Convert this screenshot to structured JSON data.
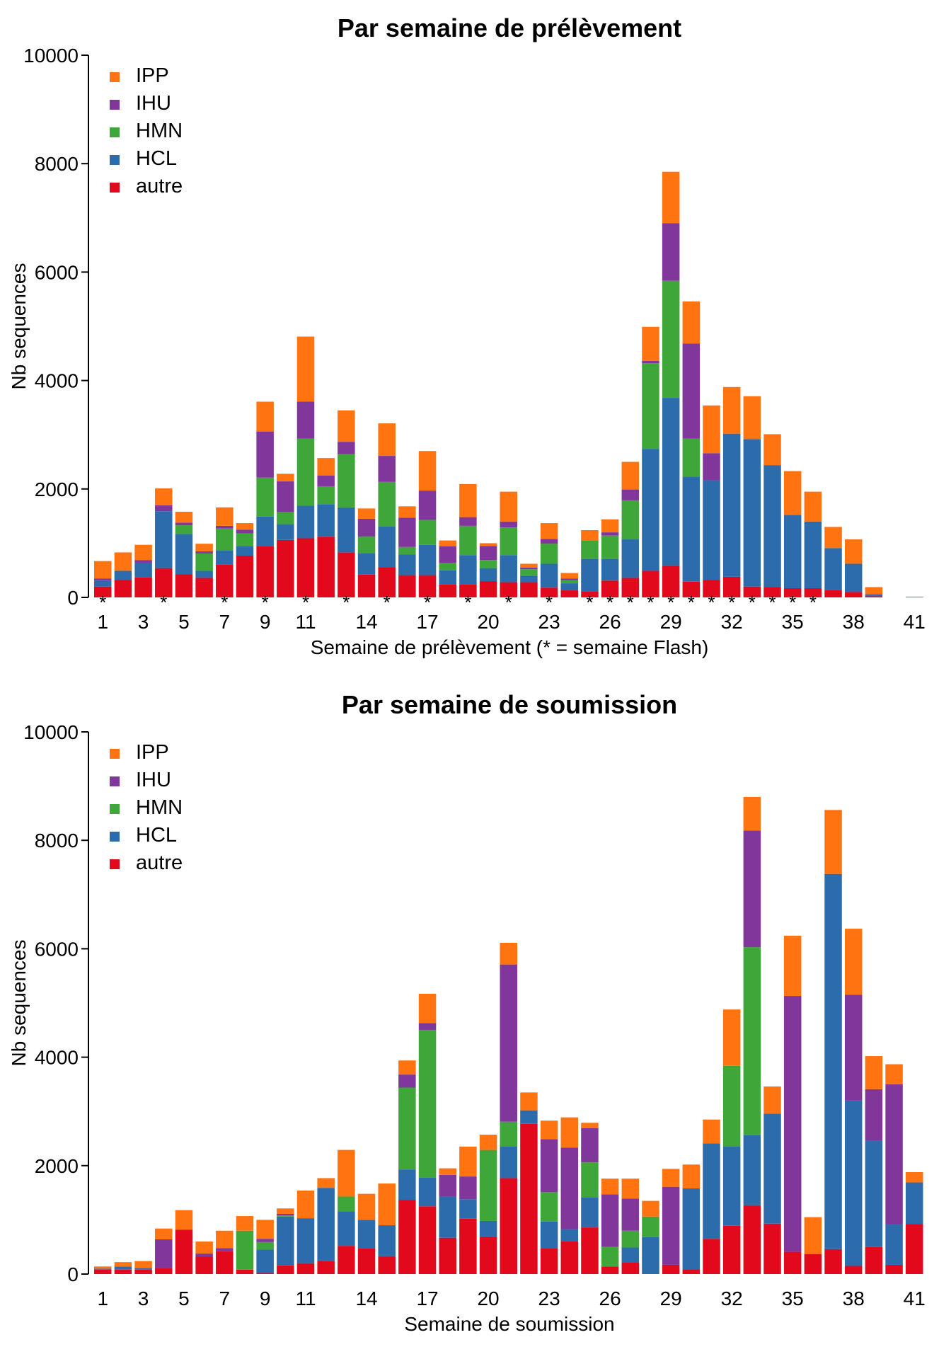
{
  "colors": {
    "IPP": "#ff7311",
    "IHU": "#80369a",
    "HMN": "#3fa63a",
    "HCL": "#2c6cad",
    "autre": "#e2091d"
  },
  "chart_data": [
    {
      "type": "bar",
      "stacked": true,
      "title": "Par semaine de prélèvement",
      "xlabel": "Semaine de prélèvement (* = semaine Flash)",
      "ylabel": "Nb sequences",
      "ylim": [
        0,
        10000
      ],
      "yticks": [
        0,
        2000,
        4000,
        6000,
        8000,
        10000
      ],
      "xtick_labels": [
        1,
        3,
        5,
        7,
        9,
        11,
        14,
        17,
        20,
        23,
        26,
        29,
        32,
        35,
        38,
        41
      ],
      "legend_position": "top-left",
      "legend": [
        "IPP",
        "IHU",
        "HMN",
        "HCL",
        "autre"
      ],
      "categories": [
        1,
        2,
        3,
        4,
        5,
        6,
        7,
        8,
        9,
        10,
        11,
        12,
        13,
        14,
        15,
        16,
        17,
        18,
        19,
        20,
        21,
        22,
        23,
        24,
        25,
        26,
        27,
        28,
        29,
        30,
        31,
        32,
        33,
        34,
        35,
        36,
        37,
        38,
        39,
        40,
        41
      ],
      "flash_weeks": [
        1,
        4,
        7,
        9,
        11,
        13,
        15,
        17,
        19,
        21,
        23,
        25,
        26,
        27,
        28,
        29,
        30,
        31,
        32,
        33,
        34,
        35,
        36
      ],
      "series": [
        {
          "name": "autre",
          "values": [
            200,
            320,
            370,
            540,
            430,
            360,
            610,
            770,
            950,
            1060,
            1090,
            1120,
            830,
            420,
            560,
            410,
            410,
            240,
            240,
            300,
            280,
            280,
            180,
            130,
            110,
            310,
            360,
            490,
            590,
            290,
            320,
            380,
            200,
            190,
            170,
            170,
            140,
            100,
            20,
            0,
            10
          ]
        },
        {
          "name": "HCL",
          "values": [
            110,
            170,
            270,
            1050,
            740,
            130,
            260,
            180,
            540,
            290,
            600,
            600,
            830,
            400,
            750,
            380,
            560,
            260,
            540,
            240,
            500,
            120,
            440,
            130,
            600,
            400,
            710,
            2250,
            3090,
            1940,
            1840,
            2640,
            2720,
            2250,
            1350,
            1230,
            770,
            520,
            30,
            0,
            0
          ]
        },
        {
          "name": "HMN",
          "values": [
            0,
            0,
            0,
            0,
            160,
            320,
            400,
            230,
            720,
            220,
            1240,
            330,
            980,
            300,
            820,
            140,
            460,
            140,
            540,
            150,
            510,
            120,
            370,
            60,
            340,
            430,
            720,
            1580,
            2160,
            700,
            0,
            0,
            0,
            0,
            0,
            0,
            0,
            0,
            0,
            0,
            0
          ]
        },
        {
          "name": "IHU",
          "values": [
            40,
            0,
            50,
            110,
            50,
            40,
            50,
            70,
            850,
            570,
            680,
            200,
            230,
            330,
            480,
            540,
            540,
            300,
            160,
            260,
            110,
            30,
            90,
            30,
            0,
            60,
            200,
            40,
            1060,
            1750,
            500,
            0,
            0,
            0,
            0,
            0,
            0,
            0,
            10,
            0,
            0
          ]
        },
        {
          "name": "IPP",
          "values": [
            320,
            340,
            280,
            310,
            200,
            140,
            340,
            120,
            550,
            140,
            1200,
            320,
            580,
            190,
            600,
            210,
            730,
            110,
            610,
            50,
            550,
            70,
            290,
            100,
            190,
            240,
            510,
            630,
            950,
            780,
            880,
            860,
            790,
            570,
            810,
            550,
            390,
            450,
            130,
            0,
            0
          ]
        }
      ]
    },
    {
      "type": "bar",
      "stacked": true,
      "title": "Par semaine de soumission",
      "xlabel": "Semaine de soumission",
      "ylabel": "Nb sequences",
      "ylim": [
        0,
        10000
      ],
      "yticks": [
        0,
        2000,
        4000,
        6000,
        8000,
        10000
      ],
      "xtick_labels": [
        1,
        3,
        5,
        7,
        9,
        11,
        14,
        17,
        20,
        23,
        26,
        29,
        32,
        35,
        38,
        41
      ],
      "legend_position": "top-left",
      "legend": [
        "IPP",
        "IHU",
        "HMN",
        "HCL",
        "autre"
      ],
      "categories": [
        1,
        2,
        3,
        4,
        5,
        6,
        7,
        8,
        9,
        10,
        11,
        12,
        13,
        14,
        15,
        16,
        17,
        18,
        19,
        20,
        21,
        22,
        23,
        24,
        25,
        26,
        27,
        28,
        29,
        30,
        31,
        32,
        33,
        34,
        35,
        36,
        37,
        38,
        39,
        40,
        41
      ],
      "series": [
        {
          "name": "autre",
          "values": [
            80,
            80,
            80,
            110,
            820,
            320,
            420,
            80,
            20,
            160,
            200,
            240,
            520,
            480,
            330,
            1370,
            1250,
            670,
            1020,
            690,
            1770,
            2770,
            470,
            600,
            860,
            140,
            220,
            0,
            170,
            90,
            650,
            890,
            1270,
            930,
            410,
            370,
            460,
            150,
            500,
            170,
            920
          ]
        },
        {
          "name": "HCL",
          "values": [
            20,
            60,
            30,
            0,
            0,
            0,
            0,
            0,
            430,
            900,
            830,
            1350,
            640,
            520,
            570,
            560,
            530,
            760,
            360,
            290,
            580,
            250,
            500,
            230,
            560,
            0,
            270,
            680,
            0,
            1490,
            1760,
            1470,
            1290,
            2030,
            0,
            0,
            6920,
            3050,
            1960,
            750,
            770
          ]
        },
        {
          "name": "HMN",
          "values": [
            0,
            0,
            0,
            0,
            0,
            0,
            0,
            720,
            140,
            20,
            0,
            0,
            270,
            0,
            0,
            1510,
            2720,
            0,
            0,
            1310,
            460,
            0,
            540,
            0,
            640,
            360,
            310,
            380,
            0,
            0,
            0,
            1480,
            3470,
            0,
            0,
            0,
            0,
            0,
            0,
            0,
            0
          ]
        },
        {
          "name": "IHU",
          "values": [
            0,
            0,
            0,
            530,
            0,
            60,
            60,
            0,
            60,
            30,
            0,
            0,
            0,
            0,
            0,
            240,
            130,
            400,
            420,
            0,
            2900,
            0,
            980,
            1500,
            630,
            970,
            590,
            0,
            1440,
            0,
            0,
            0,
            2150,
            0,
            4720,
            0,
            0,
            1950,
            950,
            2580,
            0
          ]
        },
        {
          "name": "IPP",
          "values": [
            40,
            80,
            130,
            200,
            360,
            220,
            320,
            270,
            350,
            100,
            510,
            180,
            860,
            480,
            770,
            260,
            540,
            120,
            550,
            280,
            400,
            330,
            340,
            560,
            100,
            290,
            370,
            290,
            330,
            440,
            440,
            1040,
            620,
            500,
            1110,
            680,
            1180,
            1220,
            610,
            370,
            190
          ]
        }
      ]
    }
  ]
}
